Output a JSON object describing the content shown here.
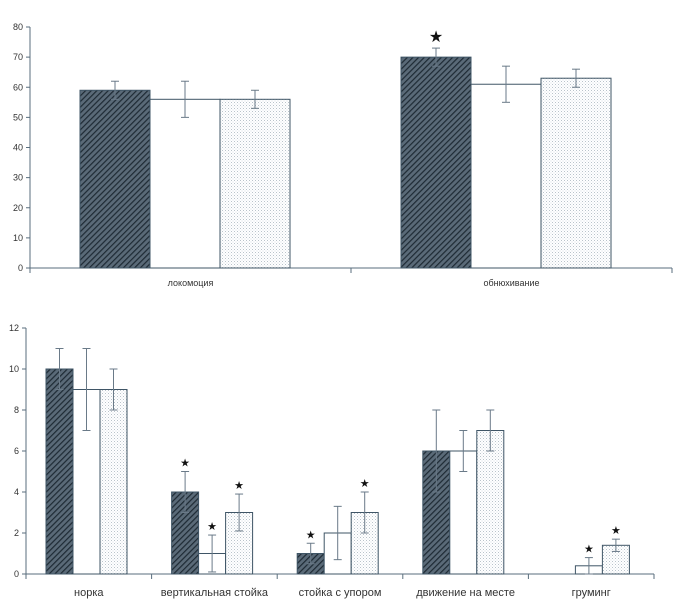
{
  "colors": {
    "dark_bar": "#2c3c4a",
    "light_bar": "#ffffff",
    "dotted_bar": "#eef2f5",
    "bar_stroke": "#3f5566",
    "axis": "#5a6e7e"
  },
  "chart_data": [
    {
      "type": "bar",
      "title": "",
      "xlabel": "",
      "ylabel": "",
      "ylim": [
        0,
        80
      ],
      "yticks": [
        "0",
        "10",
        "20",
        "30",
        "40",
        "50",
        "60",
        "70",
        "80"
      ],
      "categories": [
        "локомоция",
        "обнюхивание"
      ],
      "grid": false,
      "legend": "none",
      "series": [
        {
          "values": [
            59,
            70
          ],
          "errors": [
            3,
            3
          ],
          "stars": [
            false,
            true
          ],
          "pattern": "dark-hatch"
        },
        {
          "values": [
            56,
            61
          ],
          "errors": [
            6,
            6
          ],
          "stars": [
            false,
            false
          ],
          "pattern": "white"
        },
        {
          "values": [
            56,
            63
          ],
          "errors": [
            3,
            3
          ],
          "stars": [
            false,
            false
          ],
          "pattern": "dotted"
        }
      ],
      "star_symbol": "★"
    },
    {
      "type": "bar",
      "title": "",
      "xlabel": "",
      "ylabel": "",
      "ylim": [
        0,
        12
      ],
      "yticks": [
        "0",
        "2",
        "4",
        "6",
        "8",
        "10",
        "12"
      ],
      "categories": [
        "норка",
        "вертикальная стойка",
        "стойка с упором",
        "движение на месте",
        "груминг"
      ],
      "grid": false,
      "legend": "none",
      "series": [
        {
          "values": [
            10,
            4,
            1,
            6,
            0
          ],
          "errors": [
            1,
            1,
            0.5,
            2,
            0
          ],
          "stars": [
            false,
            true,
            true,
            false,
            false
          ],
          "pattern": "dark-hatch"
        },
        {
          "values": [
            9,
            1,
            2,
            6,
            0.4
          ],
          "errors": [
            2,
            0.9,
            1.3,
            1,
            0.4
          ],
          "stars": [
            false,
            true,
            false,
            false,
            true
          ],
          "pattern": "white"
        },
        {
          "values": [
            9,
            3,
            3,
            7,
            1.4
          ],
          "errors": [
            1,
            0.9,
            1,
            1,
            0.3
          ],
          "stars": [
            false,
            true,
            true,
            false,
            true
          ],
          "pattern": "dotted"
        }
      ],
      "star_symbol": "★"
    }
  ]
}
